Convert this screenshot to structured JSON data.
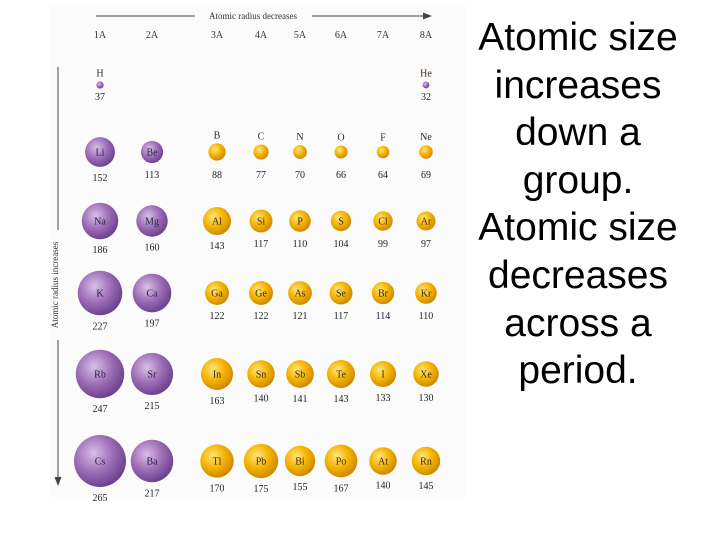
{
  "caption": "Atomic size increases down a group. Atomic size decreases across a period.",
  "figure": {
    "top_arrow_label": "Atomic radius decreases",
    "side_arrow_label": "Atomic radius increases",
    "groups": [
      "1A",
      "2A",
      "3A",
      "4A",
      "5A",
      "6A",
      "7A",
      "8A"
    ],
    "colors": {
      "metal": "#9f6fb8",
      "metal_light": "#d9bfe8",
      "nonmetal": "#f4b400",
      "nonmetal_light": "#ffe680"
    }
  },
  "chart_data": {
    "type": "table",
    "columns": [
      "1A",
      "2A",
      "3A",
      "4A",
      "5A",
      "6A",
      "7A",
      "8A"
    ],
    "rows": [
      [
        {
          "symbol": "H",
          "radius": 37
        },
        null,
        null,
        null,
        null,
        null,
        null,
        {
          "symbol": "He",
          "radius": 32
        }
      ],
      [
        {
          "symbol": "Li",
          "radius": 152
        },
        {
          "symbol": "Be",
          "radius": 113
        },
        {
          "symbol": "B",
          "radius": 88
        },
        {
          "symbol": "C",
          "radius": 77
        },
        {
          "symbol": "N",
          "radius": 70
        },
        {
          "symbol": "O",
          "radius": 66
        },
        {
          "symbol": "F",
          "radius": 64
        },
        {
          "symbol": "Ne",
          "radius": 69
        }
      ],
      [
        {
          "symbol": "Na",
          "radius": 186
        },
        {
          "symbol": "Mg",
          "radius": 160
        },
        {
          "symbol": "Al",
          "radius": 143
        },
        {
          "symbol": "Si",
          "radius": 117
        },
        {
          "symbol": "P",
          "radius": 110
        },
        {
          "symbol": "S",
          "radius": 104
        },
        {
          "symbol": "Cl",
          "radius": 99
        },
        {
          "symbol": "Ar",
          "radius": 97
        }
      ],
      [
        {
          "symbol": "K",
          "radius": 227
        },
        {
          "symbol": "Ca",
          "radius": 197
        },
        {
          "symbol": "Ga",
          "radius": 122
        },
        {
          "symbol": "Ge",
          "radius": 122
        },
        {
          "symbol": "As",
          "radius": 121
        },
        {
          "symbol": "Se",
          "radius": 117
        },
        {
          "symbol": "Br",
          "radius": 114
        },
        {
          "symbol": "Kr",
          "radius": 110
        }
      ],
      [
        {
          "symbol": "Rb",
          "radius": 247
        },
        {
          "symbol": "Sr",
          "radius": 215
        },
        {
          "symbol": "In",
          "radius": 163
        },
        {
          "symbol": "Sn",
          "radius": 140
        },
        {
          "symbol": "Sb",
          "radius": 141
        },
        {
          "symbol": "Te",
          "radius": 143
        },
        {
          "symbol": "I",
          "radius": 133
        },
        {
          "symbol": "Xe",
          "radius": 130
        }
      ],
      [
        {
          "symbol": "Cs",
          "radius": 265
        },
        {
          "symbol": "Ba",
          "radius": 217
        },
        {
          "symbol": "Tl",
          "radius": 170
        },
        {
          "symbol": "Pb",
          "radius": 175
        },
        {
          "symbol": "Bi",
          "radius": 155
        },
        {
          "symbol": "Po",
          "radius": 167
        },
        {
          "symbol": "At",
          "radius": 140
        },
        {
          "symbol": "Rn",
          "radius": 145
        }
      ]
    ]
  }
}
